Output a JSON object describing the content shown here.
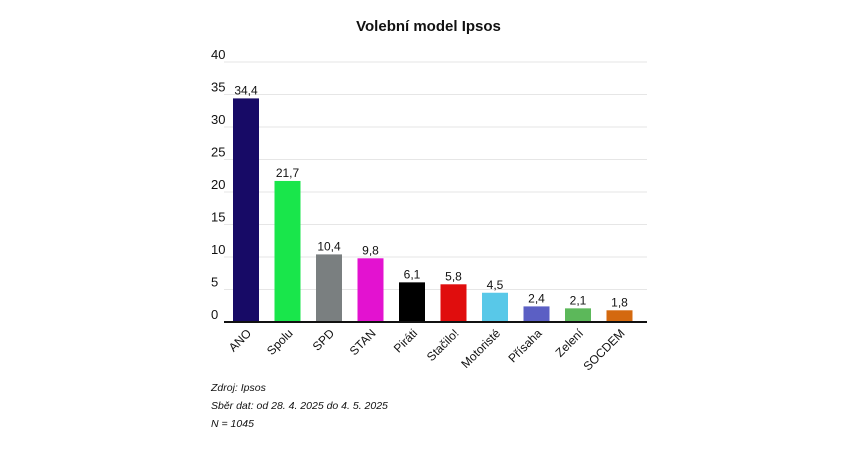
{
  "chart_data": {
    "type": "bar",
    "title": "Volební model Ipsos",
    "xlabel": "",
    "ylabel": "",
    "ylim": [
      0,
      40
    ],
    "yticks": [
      0,
      5,
      10,
      15,
      20,
      25,
      30,
      35,
      40
    ],
    "grid": true,
    "legend": "none",
    "categories": [
      "ANO",
      "Spolu",
      "SPD",
      "STAN",
      "Piráti",
      "Stačilo!",
      "Motoristé",
      "Přísaha",
      "Zelení",
      "SOCDEM"
    ],
    "values": [
      34.4,
      21.7,
      10.4,
      9.8,
      6.1,
      5.8,
      4.5,
      2.4,
      2.1,
      1.8
    ],
    "value_labels": [
      "34,4",
      "21,7",
      "10,4",
      "9,8",
      "6,1",
      "5,8",
      "4,5",
      "2,4",
      "2,1",
      "1,8"
    ],
    "colors": [
      "#170a66",
      "#19e64b",
      "#7a7f80",
      "#e312d0",
      "#000000",
      "#e00d0d",
      "#58c8e8",
      "#5b5fc4",
      "#5cb85a",
      "#d4690f"
    ]
  },
  "notes": {
    "source": "Zdroj: Ipsos",
    "collection": "Sběr dat: od 28. 4. 2025 do 4. 5. 2025",
    "sample": "N = 1045"
  }
}
